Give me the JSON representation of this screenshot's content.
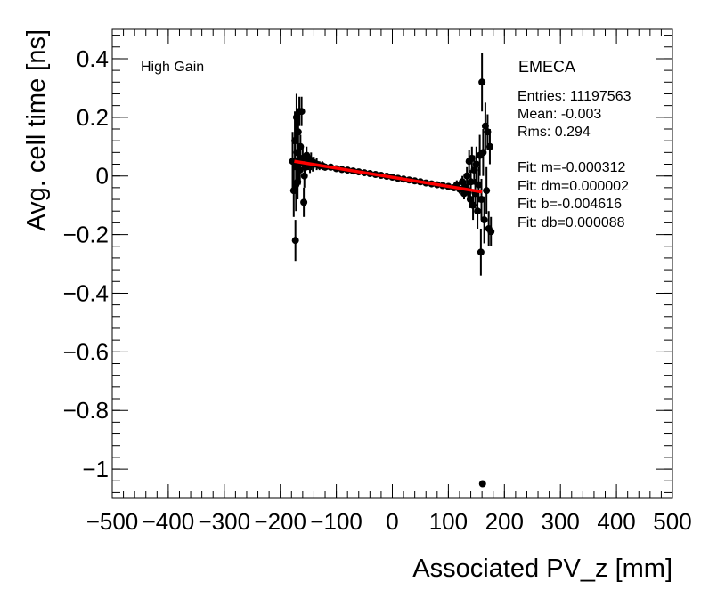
{
  "chart_data": {
    "type": "scatter",
    "title": "",
    "xlabel": "Associated PV_z [mm]",
    "ylabel": "Avg. cell time [ns]",
    "xlim": [
      -500,
      500
    ],
    "ylim": [
      -1.1,
      0.5
    ],
    "x_ticks": [
      -500,
      -400,
      -300,
      -200,
      -100,
      0,
      100,
      200,
      300,
      400,
      500
    ],
    "x_tick_labels": [
      "−500",
      "−400",
      "−300",
      "−200",
      "−100",
      "0",
      "100",
      "200",
      "300",
      "400",
      "500"
    ],
    "y_ticks": [
      0.4,
      0.2,
      0,
      -0.2,
      -0.4,
      -0.6,
      -0.8,
      -1
    ],
    "y_tick_labels": [
      "0.4",
      "0.2",
      "0",
      "−0.2",
      "−0.4",
      "−0.6",
      "−0.8",
      "−1"
    ],
    "grid": false,
    "gain_label": "High Gain",
    "stats": {
      "name": "EMECA",
      "entries": "Entries: 11197563",
      "mean": "Mean: -0.003",
      "rms": "Rms: 0.294",
      "fit_m": "Fit: m=-0.000312",
      "fit_dm": "Fit: dm=0.000002",
      "fit_b": "Fit: b=-0.004616",
      "fit_db": "Fit: db=0.000088"
    },
    "fit": {
      "slope": -0.000312,
      "intercept": -0.004616,
      "x_range": [
        -175,
        160
      ],
      "color": "#ff0000"
    },
    "points": [
      {
        "x": -178,
        "y": 0.05,
        "err": 0.1
      },
      {
        "x": -176,
        "y": -0.05,
        "err": 0.09
      },
      {
        "x": -174,
        "y": 0.12,
        "err": 0.1
      },
      {
        "x": -173,
        "y": -0.22,
        "err": 0.07
      },
      {
        "x": -172,
        "y": -0.03,
        "err": 0.09
      },
      {
        "x": -171,
        "y": 0.2,
        "err": 0.08
      },
      {
        "x": -170,
        "y": 0.08,
        "err": 0.06
      },
      {
        "x": -169,
        "y": -0.02,
        "err": 0.06
      },
      {
        "x": -168,
        "y": 0.15,
        "err": 0.06
      },
      {
        "x": -167,
        "y": 0.04,
        "err": 0.05
      },
      {
        "x": -166,
        "y": 0.22,
        "err": 0.05
      },
      {
        "x": -165,
        "y": 0.02,
        "err": 0.05
      },
      {
        "x": -164,
        "y": 0.1,
        "err": 0.04
      },
      {
        "x": -162,
        "y": 0.22,
        "err": 0.05
      },
      {
        "x": -160,
        "y": 0.06,
        "err": 0.04
      },
      {
        "x": -158,
        "y": -0.09,
        "err": 0.05
      },
      {
        "x": -157,
        "y": 0.0,
        "err": 0.04
      },
      {
        "x": -155,
        "y": 0.03,
        "err": 0.04
      },
      {
        "x": -153,
        "y": 0.07,
        "err": 0.03
      },
      {
        "x": -150,
        "y": 0.05,
        "err": 0.03
      },
      {
        "x": -147,
        "y": 0.04,
        "err": 0.03
      },
      {
        "x": -145,
        "y": 0.05,
        "err": 0.03
      },
      {
        "x": -142,
        "y": 0.04,
        "err": 0.025
      },
      {
        "x": -140,
        "y": 0.045,
        "err": 0.02
      },
      {
        "x": -135,
        "y": 0.04,
        "err": 0.02
      },
      {
        "x": -130,
        "y": 0.035,
        "err": 0.015
      },
      {
        "x": -125,
        "y": 0.035,
        "err": 0.015
      },
      {
        "x": -120,
        "y": 0.03,
        "err": 0.012
      },
      {
        "x": -110,
        "y": 0.03,
        "err": 0.01
      },
      {
        "x": -100,
        "y": 0.025,
        "err": 0.01
      },
      {
        "x": -90,
        "y": 0.022,
        "err": 0.008
      },
      {
        "x": -80,
        "y": 0.02,
        "err": 0.008
      },
      {
        "x": -70,
        "y": 0.017,
        "err": 0.006
      },
      {
        "x": -60,
        "y": 0.014,
        "err": 0.006
      },
      {
        "x": -50,
        "y": 0.011,
        "err": 0.005
      },
      {
        "x": -40,
        "y": 0.008,
        "err": 0.005
      },
      {
        "x": -30,
        "y": 0.005,
        "err": 0.005
      },
      {
        "x": -20,
        "y": 0.002,
        "err": 0.005
      },
      {
        "x": -10,
        "y": -0.001,
        "err": 0.005
      },
      {
        "x": 0,
        "y": -0.004,
        "err": 0.005
      },
      {
        "x": 10,
        "y": -0.008,
        "err": 0.005
      },
      {
        "x": 20,
        "y": -0.011,
        "err": 0.005
      },
      {
        "x": 30,
        "y": -0.014,
        "err": 0.005
      },
      {
        "x": 40,
        "y": -0.017,
        "err": 0.005
      },
      {
        "x": 50,
        "y": -0.02,
        "err": 0.006
      },
      {
        "x": 60,
        "y": -0.024,
        "err": 0.006
      },
      {
        "x": 70,
        "y": -0.027,
        "err": 0.007
      },
      {
        "x": 80,
        "y": -0.03,
        "err": 0.008
      },
      {
        "x": 90,
        "y": -0.033,
        "err": 0.009
      },
      {
        "x": 100,
        "y": -0.036,
        "err": 0.01
      },
      {
        "x": 110,
        "y": -0.04,
        "err": 0.012
      },
      {
        "x": 115,
        "y": -0.03,
        "err": 0.015
      },
      {
        "x": 120,
        "y": -0.045,
        "err": 0.015
      },
      {
        "x": 125,
        "y": -0.02,
        "err": 0.02
      },
      {
        "x": 128,
        "y": -0.06,
        "err": 0.02
      },
      {
        "x": 130,
        "y": -0.04,
        "err": 0.025
      },
      {
        "x": 133,
        "y": 0.0,
        "err": 0.03
      },
      {
        "x": 135,
        "y": -0.05,
        "err": 0.03
      },
      {
        "x": 137,
        "y": 0.05,
        "err": 0.04
      },
      {
        "x": 139,
        "y": -0.08,
        "err": 0.03
      },
      {
        "x": 140,
        "y": -0.02,
        "err": 0.04
      },
      {
        "x": 142,
        "y": 0.06,
        "err": 0.04
      },
      {
        "x": 144,
        "y": -0.1,
        "err": 0.05
      },
      {
        "x": 146,
        "y": 0.02,
        "err": 0.05
      },
      {
        "x": 148,
        "y": -0.06,
        "err": 0.05
      },
      {
        "x": 150,
        "y": 0.04,
        "err": 0.06
      },
      {
        "x": 152,
        "y": -0.12,
        "err": 0.06
      },
      {
        "x": 154,
        "y": -0.03,
        "err": 0.06
      },
      {
        "x": 156,
        "y": 0.07,
        "err": 0.07
      },
      {
        "x": 158,
        "y": -0.26,
        "err": 0.08
      },
      {
        "x": 159,
        "y": -0.08,
        "err": 0.07
      },
      {
        "x": 160,
        "y": 0.32,
        "err": 0.1
      },
      {
        "x": 161,
        "y": -1.05,
        "err": 0.0
      },
      {
        "x": 162,
        "y": 0.08,
        "err": 0.08
      },
      {
        "x": 164,
        "y": -0.15,
        "err": 0.08
      },
      {
        "x": 166,
        "y": 0.17,
        "err": 0.08
      },
      {
        "x": 168,
        "y": -0.05,
        "err": 0.08
      },
      {
        "x": 170,
        "y": 0.15,
        "err": 0.06
      },
      {
        "x": 172,
        "y": -0.18,
        "err": 0.06
      },
      {
        "x": 174,
        "y": 0.1,
        "err": 0.06
      },
      {
        "x": 176,
        "y": -0.19,
        "err": 0.05
      }
    ]
  }
}
